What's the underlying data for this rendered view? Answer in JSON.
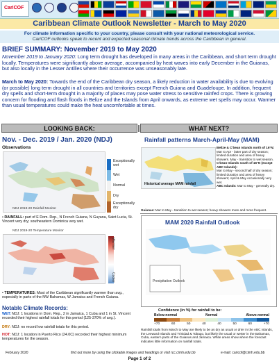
{
  "header": {
    "logo_text_a": "Cari",
    "logo_text_b": "COF",
    "title": "Caribbean Climate Outlook Newsletter - March to May 2020",
    "sub_line1": "For climate information specific to your country, please consult with your national meteorological service.",
    "sub_line2": "CariCOF outlooks speak to recent and expected seasonal climate trends across the Caribbean in general."
  },
  "brief": {
    "heading": "BRIEF SUMMARY: November 2019 to May 2020",
    "p1_lead": "November 2019 to January 2020:",
    "p1_text": " Long term drought has developed in many areas in the Caribbean, and short term drought locally. Temperatures were significantly above average, accompanied by heat waves into early December in the Guianas, but also locally in the Lesser Antilles where their occurrence was unseasonably late.",
    "p2_lead": "March to May 2020:",
    "p2_text": " Towards the end of the Caribbean dry season, a likely reduction in water availability is due to evolving (or possible) long term drought in all countries and territories except French Guiana and Guadeloupe. In addition, frequent dry spells and short-term drought in a majority of places may pose water stress to sensitive rainfed crops. There is growing concern for flooding and flash floods in Belize and the Islands from April onwards, as extreme wet spells may occur. Warmer than usual temperatures could make the heat uncomfortable at times."
  },
  "lookback": {
    "section_label": "LOOKING BACK:",
    "title": "Nov. - Dec. 2019 / Jan. 2020 (NDJ)",
    "obs_label": "Observations",
    "map1_caption": "NDJ 2019-20 Rainfall Monitor",
    "rain_legend": [
      "Exceptionally wet",
      "Wet",
      "Normal",
      "Dry",
      "Exceptionally dry"
    ],
    "rain_bullet_lead": "RAINFALL:",
    "rain_bullet_text": " part of E Dom. Rep., N French Guiana, N Guyana, Saint Lucia, St. Vincent very dry; southeastern Dominica very wet.",
    "map2_caption": "NDJ 2019-20 Temperature Monitor",
    "temp_legend_top": "Warmer",
    "temp_legend_bottom": "Cooler",
    "temp_bullet_lead": "TEMPERATURES:",
    "temp_bullet_text": " Most of the Caribbean significantly warmer than avg., especially in parts of the NW Bahamas, W Jamaica and French Guiana.",
    "records_head": "Notable Climate Records:",
    "records": [
      {
        "tag": "WET:",
        "text": "NDJ: 1 locations in Dom. Rep., 2 in Jamaica, 1 Cuba and 1 in St. Vincent recorded their highest rainfall totals for this period (125-370% of avg.)."
      },
      {
        "tag": "DRY:",
        "text": "NDJ: no record low rainfall totals for this period."
      },
      {
        "tag": "HOT:",
        "text": "NDJ: 1 location in Puerto Rico (24.0C) recorded their highest minimum temperatures for the season."
      }
    ]
  },
  "whatnext": {
    "section_label": "WHAT NEXT?",
    "title": "Rainfall patterns March-April-May (MAM)",
    "map_label": "Historical average MAM rainfall",
    "note_head1": "Belize & C'bean Islands north of 16°N:",
    "note_body1": "Mar to Apr - latter part of dry season; limited duration and area of heavy showers. May - transition to wet season.",
    "note_head2": "C'bean Islands south of 16°N (except ABC Islands):",
    "note_body2": "Mar to May - second half of dry season; limited duration and area of heavy showers; April & May occasionally very wet.",
    "note_head3": "ABC Islands:",
    "note_body3": "Mar to May - generally dry.",
    "guianas_lead": "Guianas:",
    "guianas_text": " Mar to May - transition to wet season; heavy showers more and more frequent.",
    "outlook_title": "MAM 2020 Rainfall Outlook",
    "outlook_legend_title": "Confidence (in %) for rainfall to be:",
    "outlook_cats": [
      "Below-normal",
      "Normal",
      "Above-normal"
    ],
    "outlook_ticks": [
      "+70",
      "60",
      "50",
      "40",
      "40",
      "50",
      "60",
      "+70"
    ],
    "outlook_text": "Rainfall totals from March to May are likely to be as dry as usual or drier in the ABC Islands, the Leeward Islands and Trinidad & Tobago, but likely the usual or wetter in the Bahamas, Cuba, eastern parts of the Guianas and Jamaica. White areas show where the forecast indicates little information on rainfall totals."
  },
  "footer": {
    "date": "February 2020",
    "links_note": "find out more by using the clickable images and headings or visit rcc.cimh.edu.bb",
    "email": "e-mail: caricof@cimh.edu.bb",
    "page": "Page 1 of 2"
  },
  "colors": {
    "title_blue": "#183e96",
    "wet": "#0a56c8",
    "dry": "#c07000",
    "hot": "#d0101b",
    "section_gray": "#bbbbbb"
  }
}
